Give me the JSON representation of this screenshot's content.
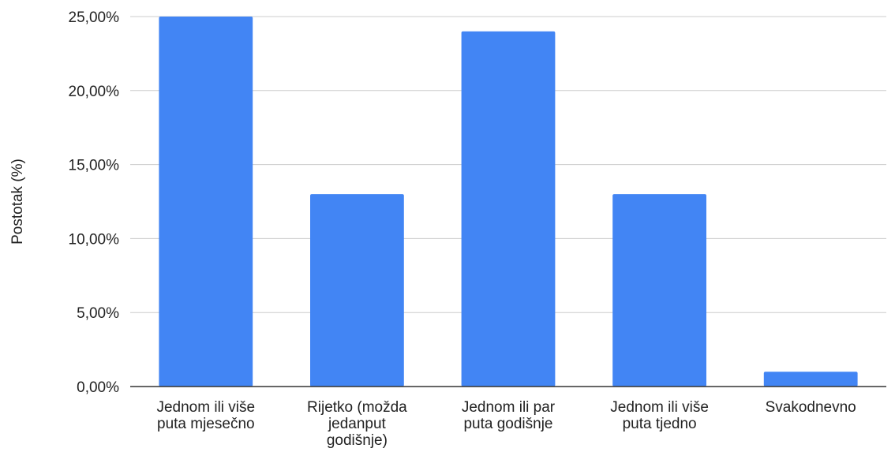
{
  "chart_data": {
    "type": "bar",
    "ylabel": "Postotak (%)",
    "xlabel": "",
    "categories": [
      [
        "Jednom ili više",
        "puta mjesečno"
      ],
      [
        "Rijetko (možda",
        "jedanput",
        "godišnje)"
      ],
      [
        "Jednom ili par",
        "puta godišnje"
      ],
      [
        "Jednom ili više",
        "puta tjedno"
      ],
      [
        "Svakodnevno"
      ]
    ],
    "values": [
      25,
      13,
      24,
      13,
      1
    ],
    "ylim": [
      0,
      25
    ],
    "yticks": [
      "0,00%",
      "5,00%",
      "10,00%",
      "15,00%",
      "20,00%",
      "25,00%"
    ],
    "grid": true,
    "legend": "none",
    "bar_color": "#4285f4"
  }
}
